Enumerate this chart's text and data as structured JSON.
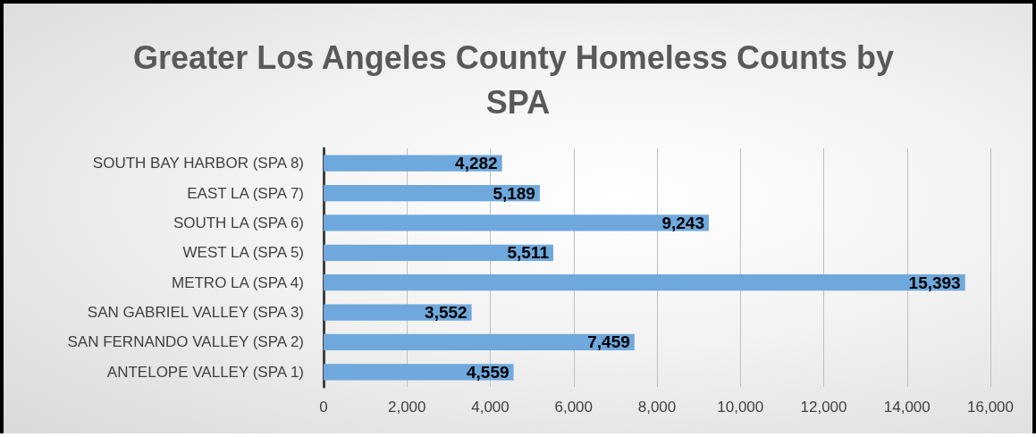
{
  "chart_data": {
    "type": "bar",
    "orientation": "horizontal",
    "title": "Greater Los Angeles County Homeless Counts by SPA",
    "categories": [
      "SOUTH BAY HARBOR (SPA 8)",
      "EAST LA (SPA 7)",
      "SOUTH LA (SPA 6)",
      "WEST LA (SPA 5)",
      "METRO LA (SPA 4)",
      "SAN GABRIEL VALLEY (SPA 3)",
      "SAN FERNANDO VALLEY (SPA 2)",
      "ANTELOPE VALLEY (SPA 1)"
    ],
    "values": [
      4282,
      5189,
      9243,
      5511,
      15393,
      3552,
      7459,
      4559
    ],
    "color": "#6fa8dc",
    "xlim": [
      0,
      16000
    ],
    "xticks": [
      {
        "value": 0,
        "label": "0"
      },
      {
        "value": 2000,
        "label": "2,000"
      },
      {
        "value": 4000,
        "label": "4,000"
      },
      {
        "value": 6000,
        "label": "6,000"
      },
      {
        "value": 8000,
        "label": "8,000"
      },
      {
        "value": 10000,
        "label": "10,000"
      },
      {
        "value": 12000,
        "label": "12,000"
      },
      {
        "value": 14000,
        "label": "14,000"
      },
      {
        "value": 16000,
        "label": "16,000"
      }
    ],
    "value_labels": [
      "4,282",
      "5,189",
      "9,243",
      "5,511",
      "15,393",
      "3,552",
      "7,459",
      "4,559"
    ],
    "grid": "x"
  }
}
